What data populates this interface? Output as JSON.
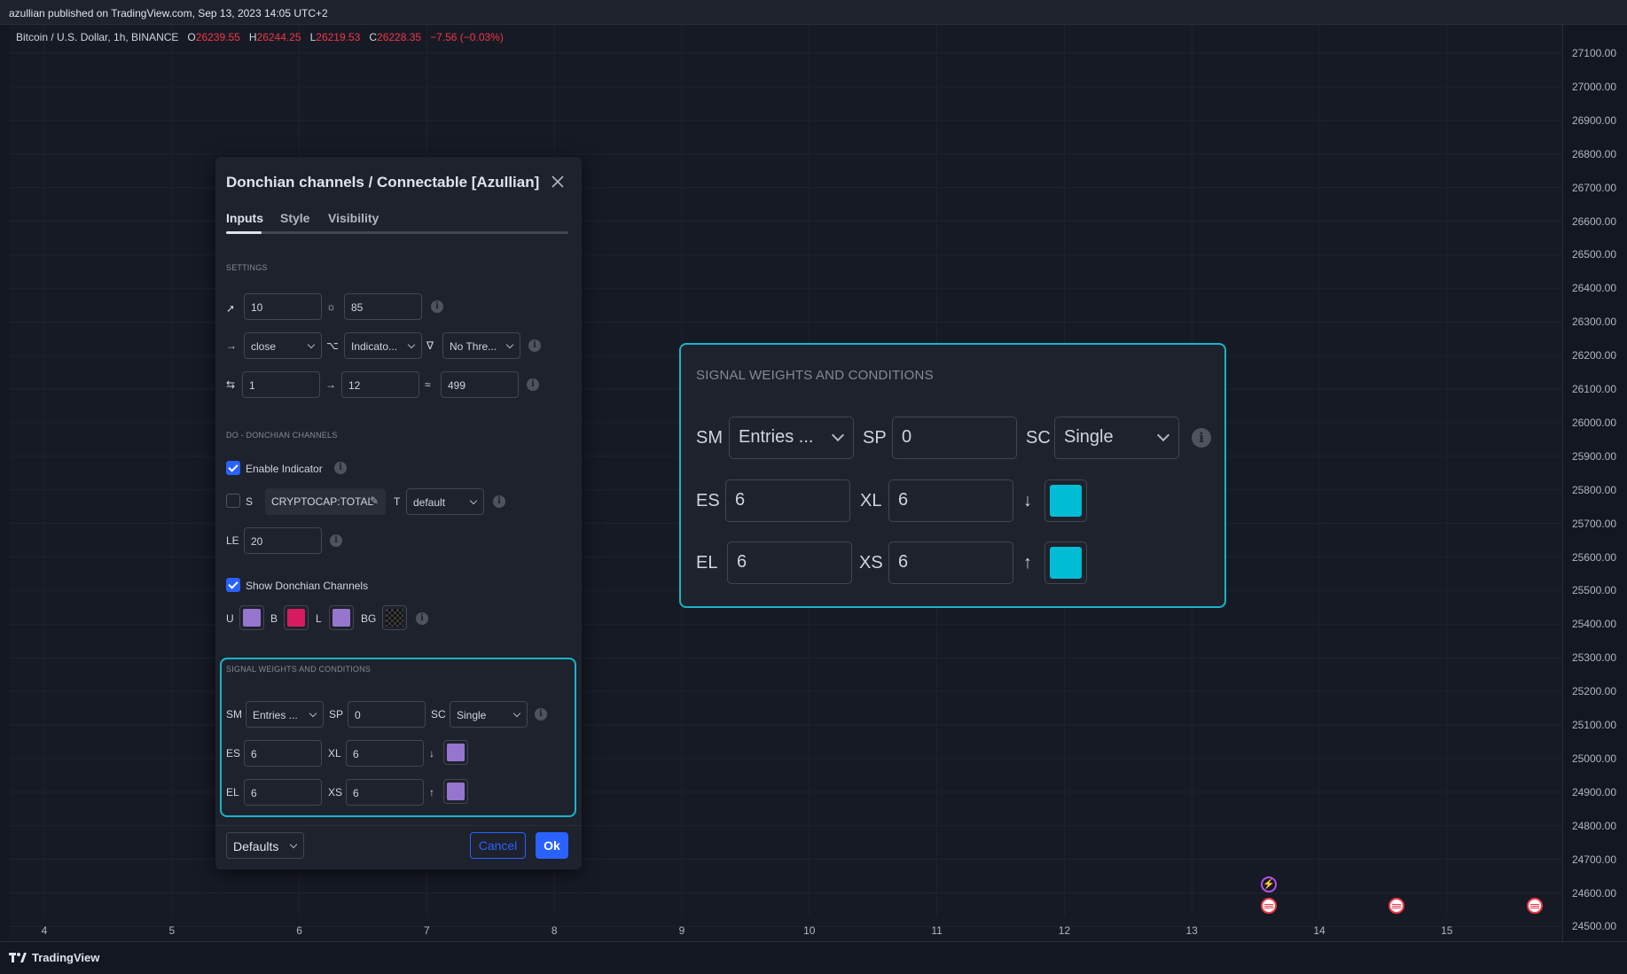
{
  "publish_bar": "azullian published on TradingView.com, Sep 13, 2023 14:05 UTC+2",
  "symbol": {
    "name": "Bitcoin / U.S. Dollar, 1h, BINANCE",
    "o_label": "O",
    "o": "26239.55",
    "h_label": "H",
    "h": "26244.25",
    "l_label": "L",
    "l": "26219.53",
    "c_label": "C",
    "c": "26228.35",
    "change": "−7.56 (−0.03%)"
  },
  "price_axis": [
    "27100.00",
    "27000.00",
    "26900.00",
    "26800.00",
    "26700.00",
    "26600.00",
    "26500.00",
    "26400.00",
    "26300.00",
    "26200.00",
    "26100.00",
    "26000.00",
    "25900.00",
    "25800.00",
    "25700.00",
    "25600.00",
    "25500.00",
    "25400.00",
    "25300.00",
    "25200.00",
    "25100.00",
    "25000.00",
    "24900.00",
    "24800.00",
    "24700.00",
    "24600.00",
    "24500.00"
  ],
  "time_axis": [
    "4",
    "5",
    "6",
    "7",
    "8",
    "9",
    "10",
    "11",
    "12",
    "13",
    "14",
    "15"
  ],
  "footer": {
    "brand": "TradingView"
  },
  "dialog": {
    "title": "Donchian channels / Connectable [Azullian]",
    "tabs": [
      "Inputs",
      "Style",
      "Visibility"
    ],
    "settings_title": "SETTINGS",
    "settings": {
      "row1": {
        "v1": "10",
        "v2": "85"
      },
      "row2": {
        "s1": "close",
        "s2": "Indicato...",
        "s3": "No Thre..."
      },
      "row3": {
        "v1": "1",
        "v2": "12",
        "v3": "499"
      }
    },
    "dc_title": "DO - DONCHIAN CHANNELS",
    "enable_label": "Enable Indicator",
    "s_label": "S",
    "symbol_chip": "CRYPTOCAP:TOTAL",
    "t_label": "T",
    "t_value": "default",
    "le_label": "LE",
    "le_value": "20",
    "show_dc_label": "Show Donchian Channels",
    "colors": {
      "u": "U",
      "b": "B",
      "l": "L",
      "bg": "BG"
    },
    "swatch_colors": {
      "u": "#9575cd",
      "b": "#d81b60",
      "l": "#9575cd"
    },
    "signal": {
      "title": "SIGNAL WEIGHTS AND CONDITIONS",
      "sm_label": "SM",
      "sm_value": "Entries ...",
      "sp_label": "SP",
      "sp_value": "0",
      "sc_label": "SC",
      "sc_value": "Single",
      "es_label": "ES",
      "es_value": "6",
      "xl_label": "XL",
      "xl_value": "6",
      "el_label": "EL",
      "el_value": "6",
      "xs_label": "XS",
      "xs_value": "6",
      "down_arrow": "↓",
      "up_arrow": "↑",
      "swatch_color": "#9575cd"
    },
    "defaults_label": "Defaults",
    "cancel_label": "Cancel",
    "ok_label": "Ok"
  },
  "zoom": {
    "title": "SIGNAL WEIGHTS AND CONDITIONS",
    "sm_label": "SM",
    "sm_value": "Entries ...",
    "sp_label": "SP",
    "sp_value": "0",
    "sc_label": "SC",
    "sc_value": "Single",
    "es_label": "ES",
    "es_value": "6",
    "xl_label": "XL",
    "xl_value": "6",
    "el_label": "EL",
    "el_value": "6",
    "xs_label": "XS",
    "xs_value": "6",
    "down_arrow": "↓",
    "up_arrow": "↑",
    "swatch_color": "#00bcd4"
  },
  "colors": {
    "accent": "#2962ff",
    "highlight": "#19b4c8",
    "negative": "#f23645"
  }
}
